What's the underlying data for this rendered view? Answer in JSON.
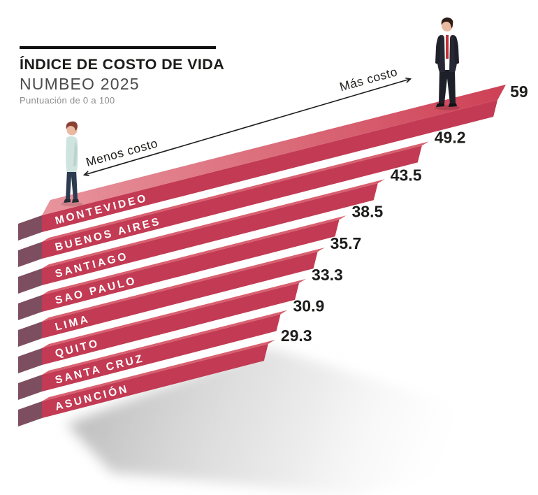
{
  "header": {
    "title": "ÍNDICE DE COSTO DE VIDA",
    "subtitle": "NUMBEO 2025",
    "note": "Puntuación de 0 a 100"
  },
  "annotations": {
    "arrow_left_label": "Menos costo",
    "arrow_right_label": "Más costo"
  },
  "figures": {
    "left": "person-casual-looking-up",
    "right": "person-in-suit"
  },
  "colors": {
    "bar_front": "#c23a53",
    "bar_top": "#d8606f",
    "bar_top_light": "#e8949d",
    "bar_top_dark": "#ce4257",
    "bar_side": "#7d4e5f",
    "bar_label": "#ffffff",
    "value_text": "#1c1c1b",
    "title_text": "#1c1c1b",
    "subtitle_text": "#4b4b4b",
    "note_text": "#8c8c8c",
    "arrow": "#1d1d1b",
    "shadow": "#c3c3c3"
  },
  "chart_data": {
    "type": "bar",
    "style": "isometric-diagonal-staircase",
    "title": "ÍNDICE DE COSTO DE VIDA",
    "subtitle": "NUMBEO 2025",
    "scale_note": "Puntuación de 0 a 100",
    "range": [
      0,
      100
    ],
    "categories": [
      "MONTEVIDEO",
      "BUENOS AIRES",
      "SANTIAGO",
      "SAO PAULO",
      "LIMA",
      "QUITO",
      "SANTA CRUZ",
      "ASUNCIÓN"
    ],
    "values": [
      59,
      49.2,
      43.5,
      38.5,
      35.7,
      33.3,
      30.9,
      29.3
    ],
    "value_labels": [
      "59",
      "49.2",
      "43.5",
      "38.5",
      "35.7",
      "33.3",
      "30.9",
      "29.3"
    ],
    "axis_annotation_low": "Menos costo",
    "axis_annotation_high": "Más costo",
    "legend": "none",
    "grid": "off"
  }
}
